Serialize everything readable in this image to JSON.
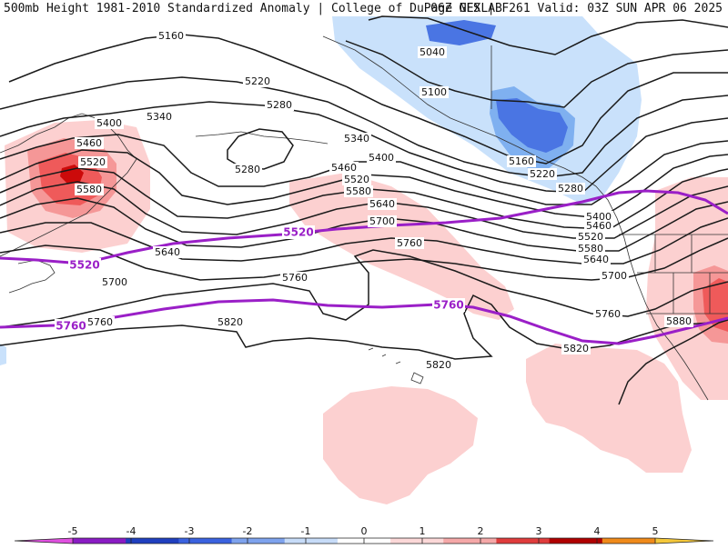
{
  "header": {
    "left": "500mb Height 1981-2010 Standardized Anomaly | College of DuPage NEXLAB",
    "right": "06Z GFS | F261 Valid: 03Z SUN APR 06 2025"
  },
  "colors": {
    "neg_light": "#c9e1fb",
    "neg_mid": "#7fb0f0",
    "neg_strong": "#4a75e3",
    "pos_light": "#fcd0d0",
    "pos_mid": "#f59797",
    "pos_strong": "#ef5a5a",
    "pos_core": "#cc0a0a",
    "highlight_contour": "#9a1fc7"
  },
  "contour_labels": {
    "c5160_a": "5160",
    "c5160_b": "5160",
    "c5040": "5040",
    "c5100": "5100",
    "c5220_a": "5220",
    "c5220_b": "5220",
    "c5280_a": "5280",
    "c5280_b": "5280",
    "c5280_c": "5280",
    "c5340_a": "5340",
    "c5340_b": "5340",
    "c5400_a": "5400",
    "c5400_b": "5400",
    "c5400_c": "5400",
    "c5460_a": "5460",
    "c5460_b": "5460",
    "c5460_c": "5460",
    "c5520_a": "5520",
    "c5520_b": "5520",
    "c5520_c": "5520",
    "c5580_a": "5580",
    "c5580_b": "5580",
    "c5580_c": "5580",
    "c5640_a": "5640",
    "c5640_b": "5640",
    "c5640_c": "5640",
    "c5700_a": "5700",
    "c5700_b": "5700",
    "c5700_c": "5700",
    "c5760_a": "5760",
    "c5760_b": "5760",
    "c5760_c": "5760",
    "c5760_d": "5760",
    "c5820_a": "5820",
    "c5820_b": "5820",
    "c5820_c": "5820",
    "c5880": "5880"
  },
  "highlight_labels": {
    "h5520_a": "5520",
    "h5520_b": "5520",
    "h5760_a": "5760",
    "h5760_b": "5760"
  },
  "colorbar": {
    "ticks": [
      "-5",
      "-4",
      "-3",
      "-2",
      "-1",
      "0",
      "1",
      "2",
      "3",
      "4",
      "5"
    ],
    "bins": [
      {
        "color": "#8a1bc4"
      },
      {
        "color": "#1f3fbf"
      },
      {
        "color": "#3a62e0"
      },
      {
        "color": "#7ea3ee"
      },
      {
        "color": "#c7dcf8"
      },
      {
        "color": "#ffffff"
      },
      {
        "color": "#fcd8d8"
      },
      {
        "color": "#f5a8a8"
      },
      {
        "color": "#e03c3c"
      },
      {
        "color": "#b00000"
      },
      {
        "color": "#f08a1a"
      }
    ],
    "low_end_color": "#e050e0",
    "high_end_color": "#f5c83a"
  }
}
